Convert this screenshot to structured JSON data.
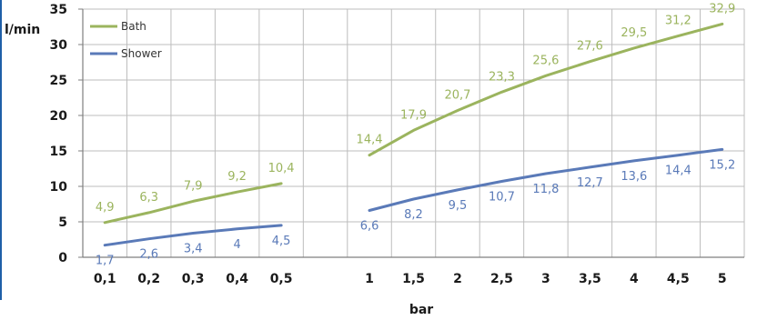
{
  "chart_data": {
    "type": "line",
    "ylabel": "l/min",
    "xlabel": "bar",
    "ylim": [
      0,
      35
    ],
    "yticks": [
      0,
      5,
      10,
      15,
      20,
      25,
      30,
      35
    ],
    "grid": true,
    "legend_position": "top-left",
    "categories": [
      "0,1",
      "0,2",
      "0,3",
      "0,4",
      "0,5",
      "",
      "1",
      "1,5",
      "2",
      "2,5",
      "3",
      "3,5",
      "4",
      "4,5",
      "5"
    ],
    "series": [
      {
        "name": "Bath",
        "color": "#9bb45e",
        "segments": [
          {
            "values": [
              4.9,
              6.3,
              7.9,
              9.2,
              10.4
            ],
            "labels": [
              "4,9",
              "6,3",
              "7,9",
              "9,2",
              "10,4"
            ],
            "start_index": 0
          },
          {
            "values": [
              14.4,
              17.9,
              20.7,
              23.3,
              25.6,
              27.6,
              29.5,
              31.2,
              32.9
            ],
            "labels": [
              "14,4",
              "17,9",
              "20,7",
              "23,3",
              "25,6",
              "27,6",
              "29,5",
              "31,2",
              "32,9"
            ],
            "start_index": 6
          }
        ]
      },
      {
        "name": "Shower",
        "color": "#5a7ab8",
        "segments": [
          {
            "values": [
              1.7,
              2.6,
              3.4,
              4,
              4.5
            ],
            "labels": [
              "1,7",
              "2,6",
              "3,4",
              "4",
              "4,5"
            ],
            "start_index": 0
          },
          {
            "values": [
              6.6,
              8.2,
              9.5,
              10.7,
              11.8,
              12.7,
              13.6,
              14.4,
              15.2
            ],
            "labels": [
              "6,6",
              "8,2",
              "9,5",
              "10,7",
              "11,8",
              "12,7",
              "13,6",
              "14,4",
              "15,2"
            ],
            "start_index": 6
          }
        ]
      }
    ]
  }
}
